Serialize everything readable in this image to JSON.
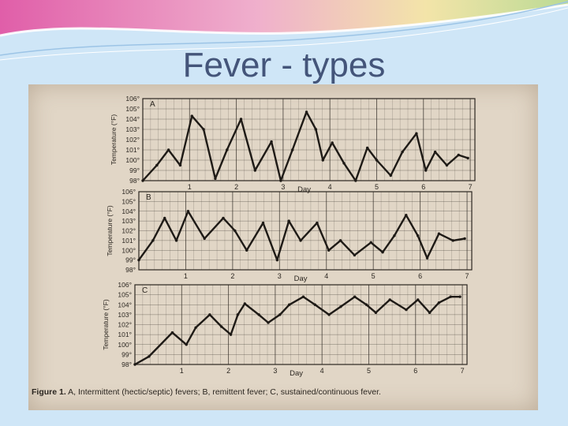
{
  "slide": {
    "title": "Fever - types",
    "caption_label": "Figure 1.",
    "caption_text": "A, Intermittent (hectic/septic) fevers; B, remittent fever; C, sustained/continuous fever."
  },
  "colors": {
    "background": "#cfe6f7",
    "title": "#44557a",
    "photo": "#e1d6c6",
    "ink": "#2b2620",
    "accent_band": "#e24fa0"
  },
  "chart_data": [
    {
      "type": "line",
      "panel_label": "A",
      "ylabel": "Temperature (°F)",
      "xlabel": "Day",
      "x_ticks": [
        "1",
        "2",
        "3",
        "4",
        "5",
        "6",
        "7"
      ],
      "y_ticks": [
        "98",
        "99",
        "100",
        "101",
        "102",
        "103",
        "104",
        "105",
        "106"
      ],
      "ylim": [
        98,
        106
      ],
      "xlim": [
        0,
        7.1
      ],
      "grid": true,
      "x": [
        0,
        0.3,
        0.55,
        0.8,
        1.05,
        1.3,
        1.55,
        1.8,
        2.1,
        2.4,
        2.75,
        2.95,
        3.2,
        3.5,
        3.7,
        3.85,
        4.05,
        4.3,
        4.55,
        4.8,
        5.0,
        5.3,
        5.55,
        5.85,
        6.05,
        6.25,
        6.5,
        6.75,
        6.95
      ],
      "values": [
        98,
        99.5,
        101,
        99.5,
        104.3,
        103,
        98.2,
        101,
        104,
        99,
        101.8,
        98,
        101,
        104.7,
        103,
        100,
        101.7,
        99.7,
        98,
        101.2,
        100,
        98.5,
        100.8,
        102.6,
        99,
        100.8,
        99.5,
        100.5,
        100.2
      ]
    },
    {
      "type": "line",
      "panel_label": "B",
      "ylabel": "Temperature (°F)",
      "xlabel": "Day",
      "x_ticks": [
        "1",
        "2",
        "3",
        "4",
        "5",
        "6",
        "7"
      ],
      "y_ticks": [
        "98",
        "99",
        "100",
        "101",
        "102",
        "103",
        "104",
        "105",
        "106"
      ],
      "ylim": [
        98,
        106
      ],
      "xlim": [
        0,
        7.1
      ],
      "grid": true,
      "x": [
        0,
        0.3,
        0.55,
        0.8,
        1.05,
        1.4,
        1.8,
        2.05,
        2.3,
        2.65,
        2.95,
        3.2,
        3.45,
        3.8,
        4.05,
        4.3,
        4.6,
        4.95,
        5.2,
        5.45,
        5.7,
        5.95,
        6.15,
        6.4,
        6.7,
        6.95
      ],
      "values": [
        99,
        101,
        103.3,
        101,
        104,
        101.2,
        103.3,
        102,
        100,
        102.8,
        99,
        103,
        101,
        102.8,
        100,
        101,
        99.5,
        100.8,
        99.8,
        101.5,
        103.6,
        101.5,
        99.2,
        101.7,
        101,
        101.2
      ]
    },
    {
      "type": "line",
      "panel_label": "C",
      "ylabel": "Temperature (°F)",
      "xlabel": "Day",
      "x_ticks": [
        "1",
        "2",
        "3",
        "4",
        "5",
        "6",
        "7"
      ],
      "y_ticks": [
        "98",
        "99",
        "100",
        "101",
        "102",
        "103",
        "104",
        "105",
        "106"
      ],
      "ylim": [
        98,
        106
      ],
      "xlim": [
        0,
        7.1
      ],
      "grid": true,
      "x": [
        0,
        0.3,
        0.8,
        1.1,
        1.3,
        1.6,
        1.85,
        2.05,
        2.2,
        2.35,
        2.65,
        2.85,
        3.1,
        3.3,
        3.6,
        3.85,
        4.15,
        4.4,
        4.7,
        4.95,
        5.15,
        5.45,
        5.8,
        6.05,
        6.3,
        6.5,
        6.75,
        6.95
      ],
      "values": [
        98,
        98.8,
        101.2,
        100,
        101.7,
        103,
        101.8,
        101,
        103,
        104.1,
        103,
        102.2,
        103,
        104,
        104.8,
        104,
        103,
        103.8,
        104.8,
        104,
        103.2,
        104.5,
        103.5,
        104.5,
        103.2,
        104.2,
        104.8,
        104.8
      ]
    }
  ]
}
